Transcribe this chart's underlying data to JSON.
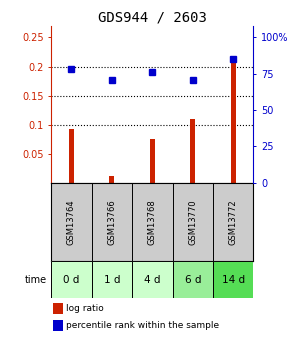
{
  "title": "GDS944 / 2603",
  "samples": [
    "GSM13764",
    "GSM13766",
    "GSM13768",
    "GSM13770",
    "GSM13772"
  ],
  "time_labels": [
    "0 d",
    "1 d",
    "4 d",
    "6 d",
    "14 d"
  ],
  "log_ratio": [
    0.092,
    0.012,
    0.076,
    0.109,
    0.213
  ],
  "percentile_rank": [
    78,
    71,
    76,
    71,
    85
  ],
  "bar_color": "#cc2200",
  "dot_color": "#0000cc",
  "left_ylim": [
    0.0,
    0.27
  ],
  "right_ylim": [
    0,
    108
  ],
  "left_yticks": [
    0.05,
    0.1,
    0.15,
    0.2,
    0.25
  ],
  "right_yticks": [
    0,
    25,
    50,
    75,
    100
  ],
  "right_yticklabels": [
    "0",
    "25",
    "50",
    "75",
    "100%"
  ],
  "dotted_lines": [
    0.1,
    0.15,
    0.2
  ],
  "bar_width": 0.12,
  "sample_bg": "#cccccc",
  "time_bg_colors": [
    "#ccffcc",
    "#ccffcc",
    "#ccffcc",
    "#99ee99",
    "#55dd55"
  ],
  "legend_bar_color": "#cc2200",
  "legend_dot_color": "#0000cc",
  "legend_label_bar": "log ratio",
  "legend_label_dot": "percentile rank within the sample",
  "title_fontsize": 10,
  "tick_fontsize": 7,
  "sample_fontsize": 6,
  "time_fontsize": 7.5,
  "legend_fontsize": 6.5
}
